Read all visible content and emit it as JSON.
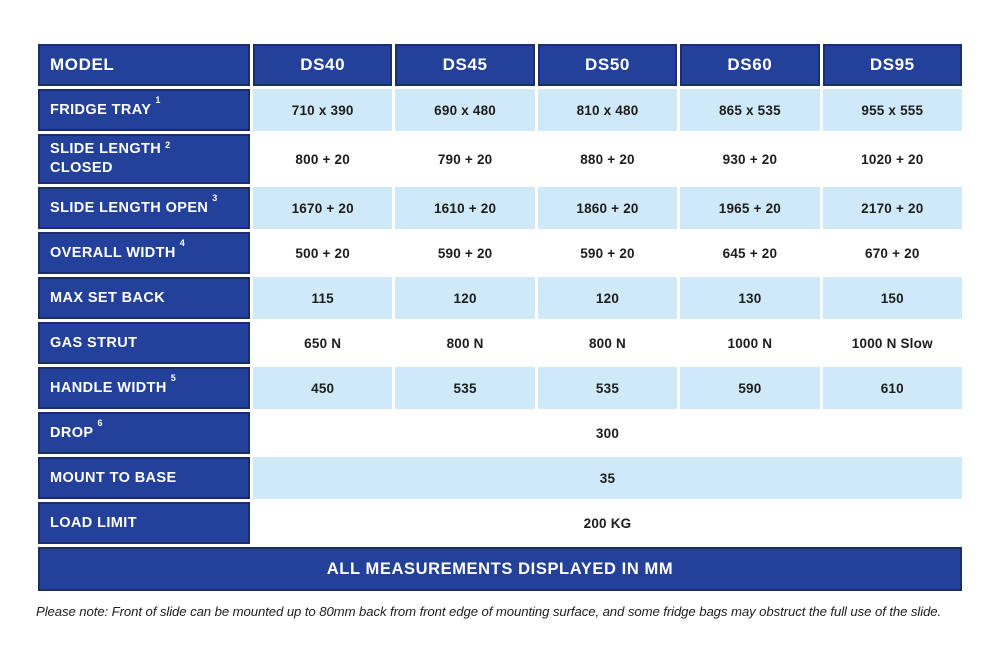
{
  "colors": {
    "dark_blue": "#23419b",
    "dark_blue_border": "#1b2e69",
    "light_blue": "#cfe9f9",
    "text_dark": "#1d1d1b",
    "white": "#ffffff"
  },
  "header": {
    "model_label": "MODEL",
    "columns": [
      "DS40",
      "DS45",
      "DS50",
      "DS60",
      "DS95"
    ]
  },
  "rows": [
    {
      "label": "FRIDGE TRAY",
      "sup": "1",
      "values": [
        "710 x 390",
        "690 x 480",
        "810 x 480",
        "865 x 535",
        "955 x 555"
      ]
    },
    {
      "label": "SLIDE LENGTH\nCLOSED",
      "sup": "2",
      "values": [
        "800 + 20",
        "790 + 20",
        "880 + 20",
        "930 + 20",
        "1020 + 20"
      ]
    },
    {
      "label": "SLIDE LENGTH OPEN",
      "sup": "3",
      "values": [
        "1670 + 20",
        "1610 + 20",
        "1860 + 20",
        "1965 + 20",
        "2170 + 20"
      ]
    },
    {
      "label": "OVERALL WIDTH",
      "sup": "4",
      "values": [
        "500 + 20",
        "590 + 20",
        "590 + 20",
        "645 + 20",
        "670 + 20"
      ]
    },
    {
      "label": "MAX SET BACK",
      "sup": "",
      "values": [
        "115",
        "120",
        "120",
        "130",
        "150"
      ]
    },
    {
      "label": "GAS STRUT",
      "sup": "",
      "values": [
        "650 N",
        "800 N",
        "800 N",
        "1000 N",
        "1000 N Slow"
      ]
    },
    {
      "label": "HANDLE WIDTH",
      "sup": "5",
      "values": [
        "450",
        "535",
        "535",
        "590",
        "610"
      ]
    },
    {
      "label": "DROP",
      "sup": "6",
      "span_value": "300"
    },
    {
      "label": "MOUNT TO BASE",
      "sup": "",
      "span_value": "35"
    },
    {
      "label": "LOAD LIMIT",
      "sup": "",
      "span_value": "200 KG"
    }
  ],
  "footer": {
    "text": "ALL MEASUREMENTS DISPLAYED IN MM"
  },
  "note": {
    "text": "Please note: Front of slide can be mounted up to 80mm back from front edge of mounting surface, and some fridge bags may obstruct the full use of the slide."
  }
}
